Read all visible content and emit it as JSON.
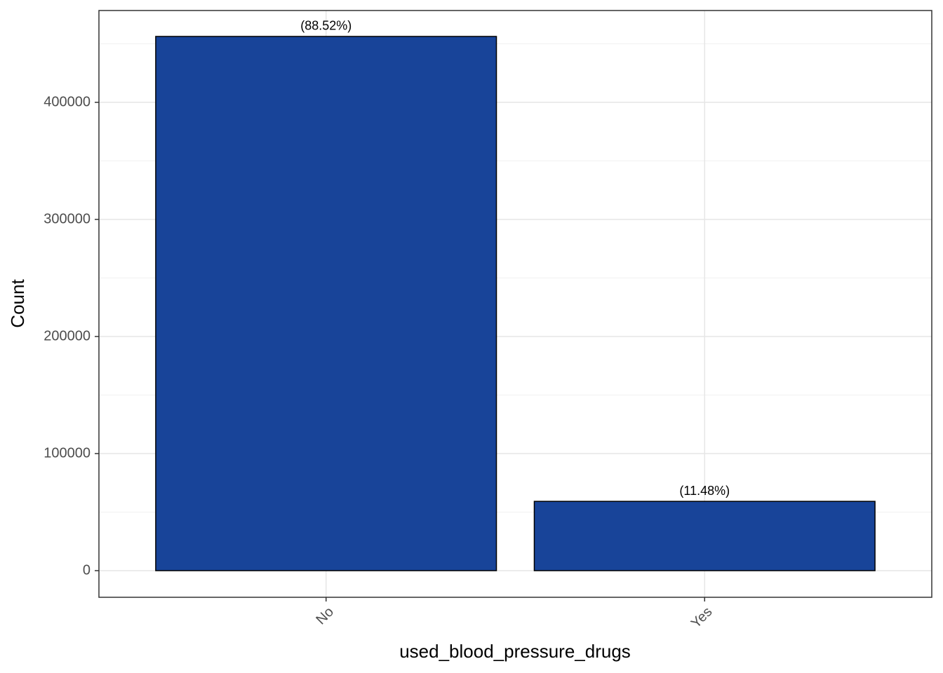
{
  "chart_data": {
    "type": "bar",
    "x_label": "used_blood_pressure_drugs",
    "y_label": "Count",
    "categories": [
      "No",
      "Yes"
    ],
    "values": [
      456300,
      59180
    ],
    "bar_labels": [
      "(88.52%)",
      "(11.48%)"
    ],
    "color": "#184499",
    "ylim": [
      -22754,
      478443
    ],
    "yticks": [
      0,
      100000,
      200000,
      300000,
      400000
    ],
    "minor_yticks": [
      50000,
      150000,
      250000,
      350000,
      450000
    ],
    "grid": true
  }
}
